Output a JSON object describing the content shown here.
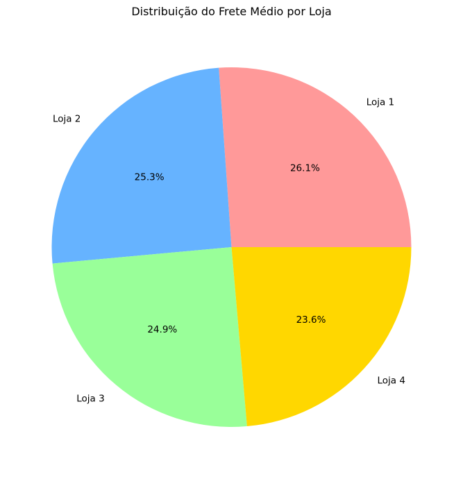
{
  "chart_data": {
    "type": "pie",
    "title": "Distribuição do Frete Médio por Loja",
    "categories": [
      "Loja 1",
      "Loja 2",
      "Loja 3",
      "Loja 4"
    ],
    "values": [
      26.1,
      25.3,
      24.9,
      23.6
    ],
    "value_labels": [
      "26.1%",
      "25.3%",
      "24.9%",
      "23.6%"
    ],
    "colors": [
      "#ff9999",
      "#66b3ff",
      "#99ff99",
      "#ffd700"
    ],
    "start_angle_deg": 0,
    "direction": "counterclockwise",
    "legend": "none"
  }
}
